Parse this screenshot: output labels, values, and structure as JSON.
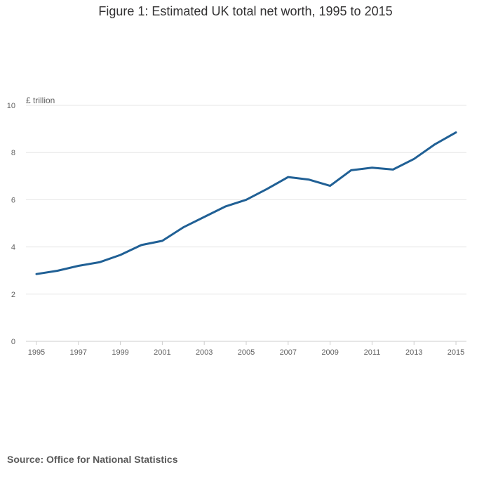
{
  "title": "Figure 1: Estimated UK total net worth, 1995 to 2015",
  "source": "Source: Office for National Statistics",
  "colors": {
    "series": "#206095",
    "grid": "#e5e5e5",
    "text": "#323132"
  },
  "chart_data": {
    "type": "line",
    "title": "Figure 1: Estimated UK total net worth, 1995 to 2015",
    "ylabel": "£ trillion",
    "xlabel": "",
    "ylim": [
      0,
      10
    ],
    "yticks": [
      0,
      2,
      4,
      6,
      8,
      10
    ],
    "xticks": [
      1995,
      1997,
      1999,
      2001,
      2003,
      2005,
      2007,
      2009,
      2011,
      2013,
      2015
    ],
    "grid": true,
    "series": [
      {
        "name": "UK total net worth",
        "x": [
          1995,
          1996,
          1997,
          1998,
          1999,
          2000,
          2001,
          2002,
          2003,
          2004,
          2005,
          2006,
          2007,
          2008,
          2009,
          2010,
          2011,
          2012,
          2013,
          2014,
          2015
        ],
        "values": [
          2.85,
          2.99,
          3.2,
          3.35,
          3.66,
          4.08,
          4.26,
          4.83,
          5.27,
          5.71,
          6.0,
          6.46,
          6.96,
          6.85,
          6.59,
          7.25,
          7.36,
          7.28,
          7.73,
          8.35,
          8.85
        ]
      }
    ]
  }
}
